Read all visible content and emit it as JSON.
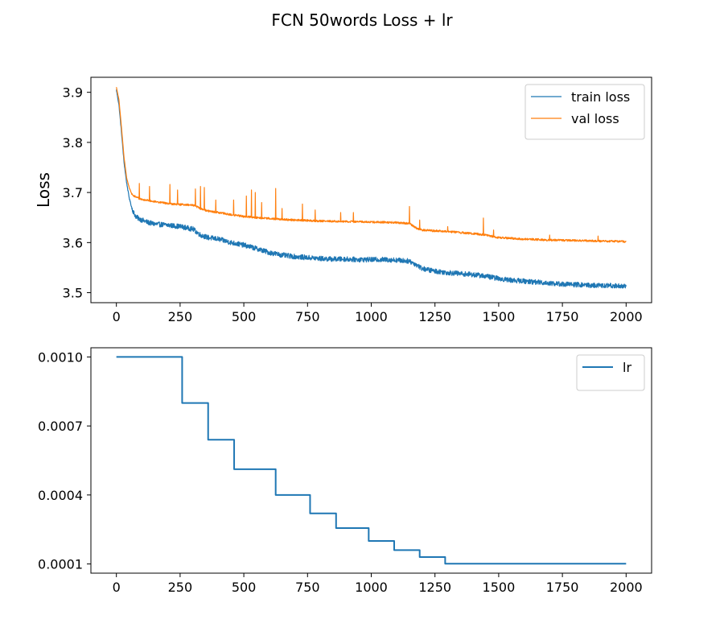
{
  "figure": {
    "title": "FCN 50words Loss + lr"
  },
  "chart_data": [
    {
      "type": "line",
      "title": "",
      "xlabel": "",
      "ylabel": "Loss",
      "xlim": [
        -100,
        2100
      ],
      "ylim": [
        3.48,
        3.93
      ],
      "xticks": [
        0,
        250,
        500,
        750,
        1000,
        1250,
        1500,
        1750,
        2000
      ],
      "yticks": [
        3.5,
        3.6,
        3.7,
        3.8,
        3.9
      ],
      "ytick_labels": [
        "3.5",
        "3.6",
        "3.7",
        "3.8",
        "3.9"
      ],
      "legend": "top-right",
      "grid": false,
      "series": [
        {
          "name": "train loss",
          "color": "#1f77b4",
          "x": [
            0,
            10,
            20,
            30,
            40,
            50,
            60,
            70,
            80,
            100,
            125,
            150,
            200,
            250,
            300,
            330,
            360,
            400,
            450,
            500,
            550,
            600,
            650,
            700,
            750,
            800,
            850,
            900,
            950,
            1000,
            1050,
            1100,
            1150,
            1180,
            1200,
            1250,
            1300,
            1350,
            1400,
            1450,
            1500,
            1550,
            1600,
            1650,
            1700,
            1750,
            1800,
            1850,
            1900,
            1950,
            2000
          ],
          "y": [
            3.905,
            3.875,
            3.82,
            3.76,
            3.72,
            3.69,
            3.67,
            3.657,
            3.65,
            3.645,
            3.64,
            3.637,
            3.635,
            3.632,
            3.627,
            3.615,
            3.61,
            3.607,
            3.6,
            3.595,
            3.588,
            3.58,
            3.575,
            3.572,
            3.57,
            3.568,
            3.567,
            3.567,
            3.566,
            3.566,
            3.566,
            3.565,
            3.563,
            3.555,
            3.548,
            3.543,
            3.54,
            3.538,
            3.536,
            3.533,
            3.528,
            3.525,
            3.523,
            3.521,
            3.519,
            3.517,
            3.516,
            3.515,
            3.514,
            3.514,
            3.513
          ],
          "noise": 0.005
        },
        {
          "name": "val loss",
          "color": "#ff7f0e",
          "x": [
            0,
            10,
            20,
            30,
            40,
            50,
            60,
            70,
            80,
            100,
            150,
            200,
            250,
            300,
            330,
            360,
            400,
            450,
            500,
            550,
            600,
            700,
            800,
            900,
            1000,
            1100,
            1150,
            1180,
            1200,
            1300,
            1400,
            1450,
            1500,
            1600,
            1700,
            1800,
            1900,
            2000
          ],
          "y": [
            3.91,
            3.885,
            3.83,
            3.77,
            3.73,
            3.71,
            3.698,
            3.693,
            3.69,
            3.686,
            3.682,
            3.678,
            3.676,
            3.675,
            3.668,
            3.663,
            3.66,
            3.656,
            3.652,
            3.65,
            3.648,
            3.645,
            3.643,
            3.642,
            3.641,
            3.64,
            3.638,
            3.628,
            3.625,
            3.622,
            3.618,
            3.615,
            3.61,
            3.607,
            3.605,
            3.604,
            3.603,
            3.602
          ],
          "noise": 0.002,
          "spikes": [
            [
              90,
              3.718
            ],
            [
              130,
              3.712
            ],
            [
              210,
              3.716
            ],
            [
              240,
              3.705
            ],
            [
              310,
              3.707
            ],
            [
              330,
              3.712
            ],
            [
              345,
              3.71
            ],
            [
              390,
              3.685
            ],
            [
              460,
              3.685
            ],
            [
              510,
              3.693
            ],
            [
              530,
              3.705
            ],
            [
              545,
              3.7
            ],
            [
              570,
              3.68
            ],
            [
              625,
              3.708
            ],
            [
              650,
              3.668
            ],
            [
              730,
              3.677
            ],
            [
              780,
              3.665
            ],
            [
              880,
              3.66
            ],
            [
              930,
              3.66
            ],
            [
              1150,
              3.672
            ],
            [
              1190,
              3.645
            ],
            [
              1300,
              3.632
            ],
            [
              1440,
              3.649
            ],
            [
              1480,
              3.625
            ],
            [
              1700,
              3.615
            ],
            [
              1890,
              3.613
            ]
          ]
        }
      ]
    },
    {
      "type": "line",
      "title": "",
      "xlabel": "",
      "ylabel": "",
      "xlim": [
        -100,
        2100
      ],
      "ylim": [
        6e-05,
        0.00104
      ],
      "xticks": [
        0,
        250,
        500,
        750,
        1000,
        1250,
        1500,
        1750,
        2000
      ],
      "yticks": [
        0.0001,
        0.0004,
        0.0007,
        0.001
      ],
      "ytick_labels": [
        "0.0001",
        "0.0004",
        "0.0007",
        "0.0010"
      ],
      "legend": "top-right",
      "grid": false,
      "series": [
        {
          "name": "lr",
          "color": "#1f77b4",
          "step": true,
          "x": [
            0,
            258,
            360,
            462,
            625,
            760,
            862,
            990,
            1090,
            1190,
            1290,
            2000
          ],
          "y": [
            0.001,
            0.0008,
            0.00064,
            0.000512,
            0.0004,
            0.00032,
            0.000256,
            0.0002,
            0.00016,
            0.00013,
            0.000101,
            0.000101
          ]
        }
      ]
    }
  ]
}
